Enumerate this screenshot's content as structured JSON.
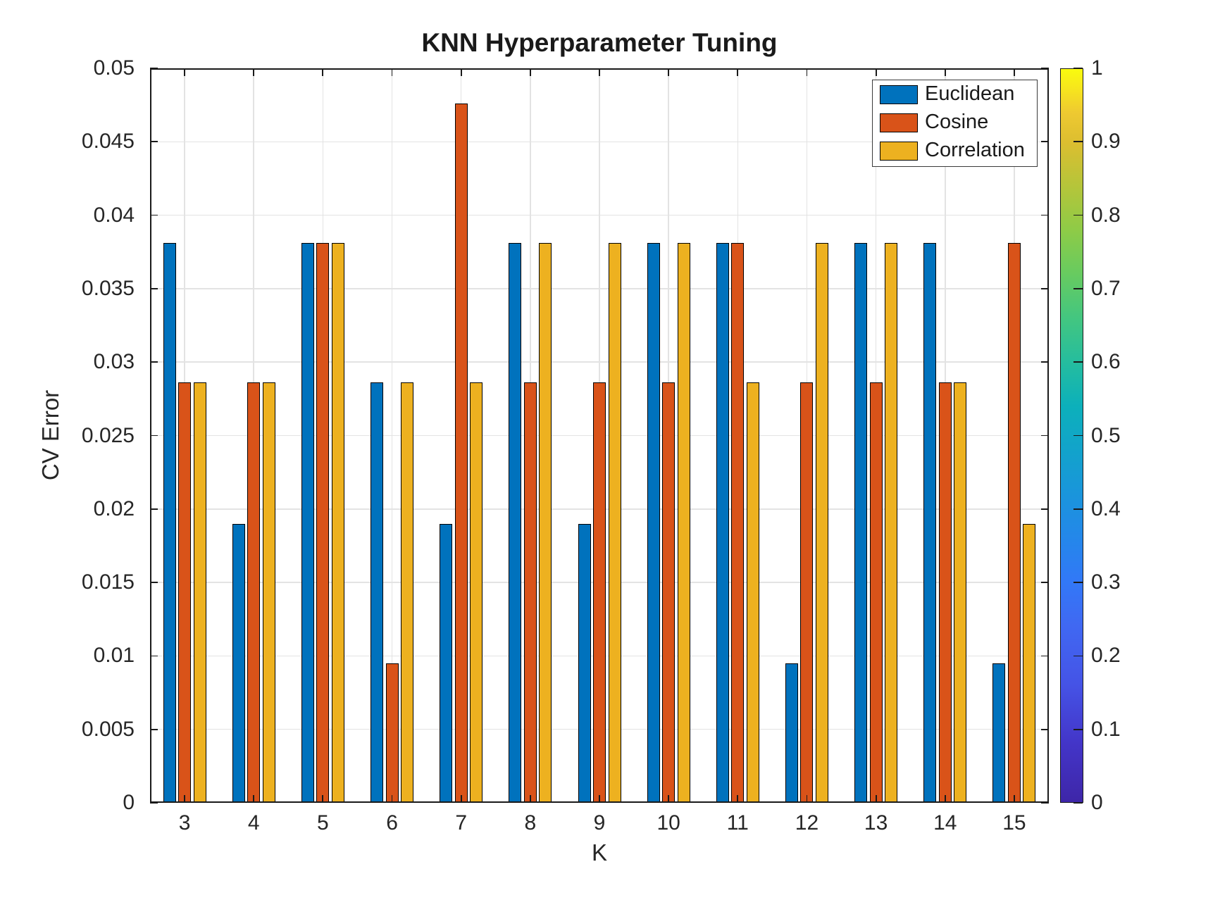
{
  "chart_data": {
    "type": "bar",
    "title": "KNN Hyperparameter Tuning",
    "xlabel": "K",
    "ylabel": "CV Error",
    "categories": [
      "3",
      "4",
      "5",
      "6",
      "7",
      "8",
      "9",
      "10",
      "11",
      "12",
      "13",
      "14",
      "15"
    ],
    "series": [
      {
        "name": "Euclidean",
        "color": "#0072BD",
        "values": [
          0.0381,
          0.019,
          0.0381,
          0.0286,
          0.019,
          0.0381,
          0.019,
          0.0381,
          0.0381,
          0.0095,
          0.0381,
          0.0381,
          0.0095
        ]
      },
      {
        "name": "Cosine",
        "color": "#D95319",
        "values": [
          0.0286,
          0.0286,
          0.0381,
          0.0095,
          0.0476,
          0.0286,
          0.0286,
          0.0286,
          0.0381,
          0.0286,
          0.0286,
          0.0286,
          0.0381
        ]
      },
      {
        "name": "Correlation",
        "color": "#EDB120",
        "values": [
          0.0286,
          0.0286,
          0.0381,
          0.0286,
          0.0286,
          0.0381,
          0.0381,
          0.0381,
          0.0286,
          0.0381,
          0.0381,
          0.0286,
          0.019
        ]
      }
    ],
    "ylim": [
      0,
      0.05
    ],
    "ytick_step": 0.005,
    "yticks": [
      "0",
      "0.005",
      "0.01",
      "0.015",
      "0.02",
      "0.025",
      "0.03",
      "0.035",
      "0.04",
      "0.045",
      "0.05"
    ],
    "grid": true,
    "legend_position": "top-right",
    "legend_entries": [
      "Euclidean",
      "Cosine",
      "Correlation"
    ],
    "colorbar": {
      "min": 0,
      "max": 1,
      "ticks": [
        "0",
        "0.1",
        "0.2",
        "0.3",
        "0.4",
        "0.5",
        "0.6",
        "0.7",
        "0.8",
        "0.9",
        "1"
      ],
      "colormap_name": "parula",
      "gradient": [
        [
          0,
          "#3e26a8"
        ],
        [
          8,
          "#4335c8"
        ],
        [
          16,
          "#4553e6"
        ],
        [
          24,
          "#4068f2"
        ],
        [
          30,
          "#3278f7"
        ],
        [
          36,
          "#2487ea"
        ],
        [
          42,
          "#1a95db"
        ],
        [
          48,
          "#12a3cb"
        ],
        [
          54,
          "#0cb0bb"
        ],
        [
          60,
          "#25bd9e"
        ],
        [
          66,
          "#43c680"
        ],
        [
          72,
          "#67cb60"
        ],
        [
          78,
          "#8ecb47"
        ],
        [
          84,
          "#b5c53a"
        ],
        [
          90,
          "#dcbe30"
        ],
        [
          94,
          "#eec931"
        ],
        [
          97,
          "#f6e31f"
        ],
        [
          100,
          "#f9fb0e"
        ]
      ]
    },
    "colors": {
      "background": "#ffffff",
      "axis": "#1a1a1a",
      "grid": "#e3e3e3",
      "text": "#262626"
    }
  }
}
